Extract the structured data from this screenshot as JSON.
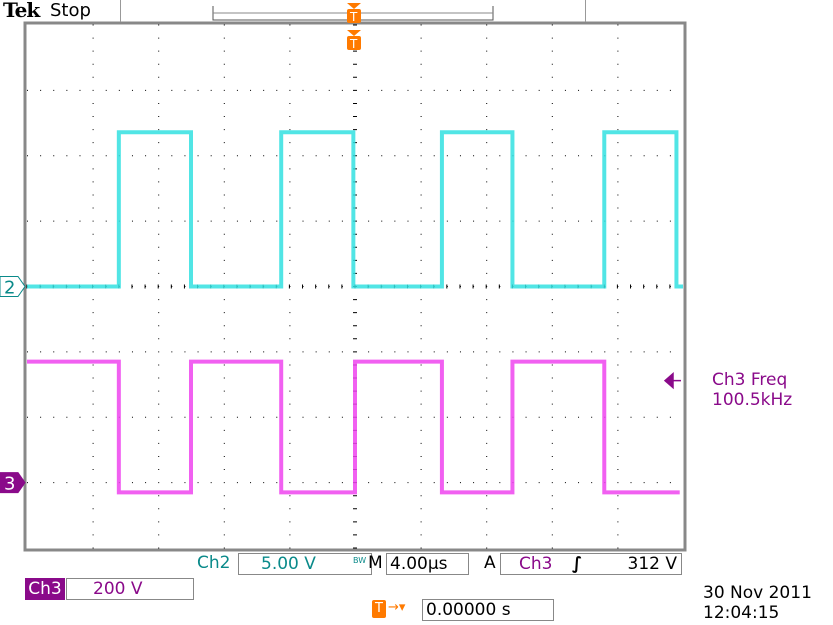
{
  "header": {
    "brand": "Tek",
    "status": "Stop"
  },
  "channels": {
    "ch2": {
      "label": "Ch2",
      "scale": "5.00 V",
      "bw_icon": "bandwidth-limit-icon",
      "bw_text": "BW",
      "color": "#33e0e0",
      "marker": "2"
    },
    "ch3": {
      "label": "Ch3",
      "scale": "200 V",
      "color": "#ee44ee",
      "marker": "3"
    }
  },
  "timebase": {
    "mode": "M",
    "scale": "4.00µs"
  },
  "trigger": {
    "mode": "A",
    "source": "Ch3",
    "slope_icon": "rising-edge-icon",
    "level": "312 V",
    "position": "0.00000 s",
    "marker": "T",
    "color": "#ff7a00"
  },
  "measurement": {
    "label": "Ch3 Freq",
    "value": "100.5kHz"
  },
  "datetime": {
    "date": "30 Nov 2011",
    "time": "12:04:15"
  },
  "chart_data": {
    "type": "line",
    "xlabel": "",
    "ylabel": "",
    "xlim": [
      -20,
      20
    ],
    "x_units": "µs",
    "divisions": {
      "x": 10,
      "y": 8
    },
    "grid": true,
    "series": [
      {
        "name": "Ch2",
        "volts_per_div": 5,
        "ground_div": 0,
        "color": "#33e0e0",
        "x": [
          -20,
          -14.4,
          -14.4,
          -10.0,
          -10.0,
          -4.5,
          -4.5,
          -0.1,
          -0.1,
          5.3,
          5.3,
          9.6,
          9.6,
          15.2,
          15.2,
          19.6,
          19.6,
          20
        ],
        "y": [
          0,
          0,
          11.8,
          11.8,
          0,
          0,
          11.8,
          11.8,
          0,
          0,
          11.8,
          11.8,
          0,
          0,
          11.8,
          11.8,
          0,
          0
        ]
      },
      {
        "name": "Ch3",
        "volts_per_div": 200,
        "ground_div": -3,
        "color": "#ee44ee",
        "x": [
          -20,
          -14.4,
          -14.4,
          -10.0,
          -10.0,
          -4.5,
          -4.5,
          0.0,
          0.0,
          5.3,
          5.3,
          9.6,
          9.6,
          15.2,
          15.2,
          19.8
        ],
        "y": [
          370,
          370,
          -30,
          -30,
          370,
          370,
          -30,
          -30,
          370,
          370,
          -30,
          -30,
          370,
          370,
          -30,
          -30
        ]
      }
    ]
  }
}
